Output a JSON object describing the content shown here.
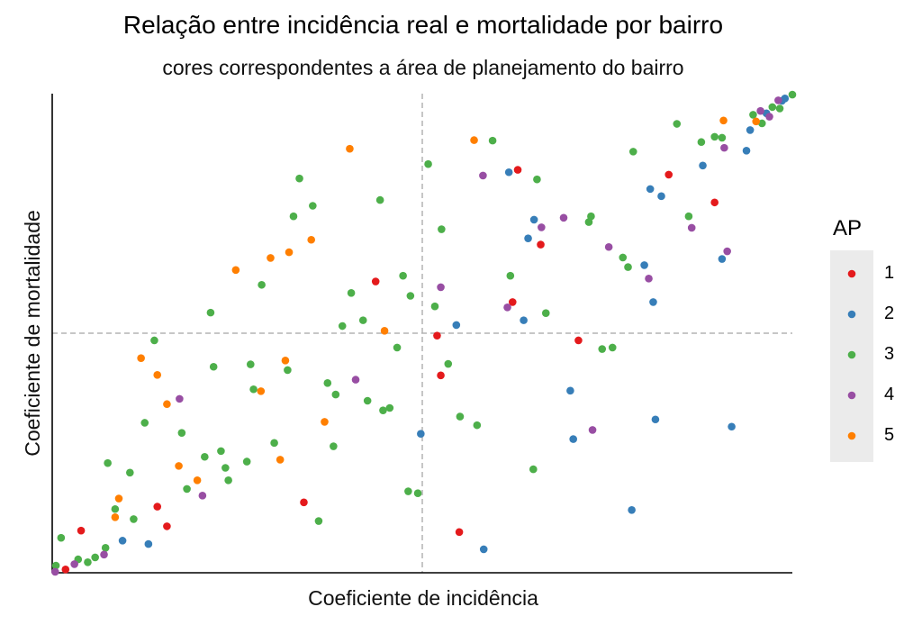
{
  "chart_data": {
    "type": "scatter",
    "title": "Relação entre incidência real e mortalidade por bairro",
    "subtitle": "cores correspondentes a área de planejamento do bairro",
    "xlabel": "Coeficiente de incidência",
    "ylabel": "Coeficiente de mortalidade",
    "xlim": [
      0,
      1
    ],
    "ylim": [
      0,
      1
    ],
    "reference_lines": {
      "x": 0.5,
      "y": 0.5
    },
    "grid": false,
    "legend": {
      "title": "AP",
      "placement": "right"
    },
    "colors": {
      "1": "#e41a1c",
      "2": "#377eb8",
      "3": "#4daf4a",
      "4": "#984ea3",
      "5": "#ff7f00"
    },
    "series": [
      {
        "name": "1",
        "points": [
          [
            0.018,
            0.007
          ],
          [
            0.039,
            0.088
          ],
          [
            0.142,
            0.138
          ],
          [
            0.155,
            0.097
          ],
          [
            0.34,
            0.147
          ],
          [
            0.437,
            0.608
          ],
          [
            0.52,
            0.495
          ],
          [
            0.525,
            0.412
          ],
          [
            0.55,
            0.085
          ],
          [
            0.622,
            0.565
          ],
          [
            0.629,
            0.841
          ],
          [
            0.66,
            0.685
          ],
          [
            0.711,
            0.485
          ],
          [
            0.833,
            0.831
          ],
          [
            0.895,
            0.773
          ]
        ]
      },
      {
        "name": "2",
        "points": [
          [
            0.095,
            0.067
          ],
          [
            0.13,
            0.06
          ],
          [
            0.498,
            0.29
          ],
          [
            0.546,
            0.517
          ],
          [
            0.583,
            0.049
          ],
          [
            0.617,
            0.836
          ],
          [
            0.637,
            0.527
          ],
          [
            0.643,
            0.698
          ],
          [
            0.651,
            0.737
          ],
          [
            0.7,
            0.38
          ],
          [
            0.704,
            0.279
          ],
          [
            0.783,
            0.131
          ],
          [
            0.8,
            0.642
          ],
          [
            0.808,
            0.801
          ],
          [
            0.823,
            0.786
          ],
          [
            0.812,
            0.565
          ],
          [
            0.815,
            0.32
          ],
          [
            0.879,
            0.85
          ],
          [
            0.905,
            0.655
          ],
          [
            0.918,
            0.305
          ],
          [
            0.938,
            0.881
          ],
          [
            0.943,
            0.924
          ],
          [
            0.965,
            0.959
          ],
          [
            0.986,
            0.985
          ],
          [
            0.99,
            0.99
          ]
        ]
      },
      {
        "name": "3",
        "points": [
          [
            0.005,
            0.015
          ],
          [
            0.012,
            0.073
          ],
          [
            0.035,
            0.028
          ],
          [
            0.048,
            0.022
          ],
          [
            0.058,
            0.032
          ],
          [
            0.072,
            0.052
          ],
          [
            0.085,
            0.133
          ],
          [
            0.11,
            0.112
          ],
          [
            0.075,
            0.229
          ],
          [
            0.105,
            0.209
          ],
          [
            0.125,
            0.313
          ],
          [
            0.138,
            0.485
          ],
          [
            0.175,
            0.292
          ],
          [
            0.182,
            0.175
          ],
          [
            0.206,
            0.242
          ],
          [
            0.214,
            0.543
          ],
          [
            0.218,
            0.43
          ],
          [
            0.228,
            0.254
          ],
          [
            0.234,
            0.219
          ],
          [
            0.238,
            0.193
          ],
          [
            0.263,
            0.232
          ],
          [
            0.268,
            0.435
          ],
          [
            0.272,
            0.383
          ],
          [
            0.283,
            0.601
          ],
          [
            0.3,
            0.271
          ],
          [
            0.318,
            0.423
          ],
          [
            0.326,
            0.744
          ],
          [
            0.334,
            0.823
          ],
          [
            0.352,
            0.766
          ],
          [
            0.36,
            0.108
          ],
          [
            0.372,
            0.396
          ],
          [
            0.38,
            0.264
          ],
          [
            0.383,
            0.372
          ],
          [
            0.392,
            0.515
          ],
          [
            0.404,
            0.584
          ],
          [
            0.42,
            0.527
          ],
          [
            0.426,
            0.359
          ],
          [
            0.443,
            0.778
          ],
          [
            0.447,
            0.339
          ],
          [
            0.456,
            0.344
          ],
          [
            0.466,
            0.47
          ],
          [
            0.474,
            0.62
          ],
          [
            0.481,
            0.17
          ],
          [
            0.484,
            0.578
          ],
          [
            0.494,
            0.166
          ],
          [
            0.508,
            0.853
          ],
          [
            0.517,
            0.556
          ],
          [
            0.526,
            0.717
          ],
          [
            0.535,
            0.436
          ],
          [
            0.551,
            0.326
          ],
          [
            0.574,
            0.308
          ],
          [
            0.595,
            0.902
          ],
          [
            0.619,
            0.62
          ],
          [
            0.65,
            0.216
          ],
          [
            0.655,
            0.821
          ],
          [
            0.667,
            0.542
          ],
          [
            0.725,
            0.732
          ],
          [
            0.728,
            0.744
          ],
          [
            0.743,
            0.467
          ],
          [
            0.757,
            0.47
          ],
          [
            0.771,
            0.658
          ],
          [
            0.778,
            0.638
          ],
          [
            0.785,
            0.879
          ],
          [
            0.844,
            0.937
          ],
          [
            0.86,
            0.744
          ],
          [
            0.877,
            0.899
          ],
          [
            0.895,
            0.91
          ],
          [
            0.905,
            0.908
          ],
          [
            0.947,
            0.956
          ],
          [
            0.959,
            0.938
          ],
          [
            0.973,
            0.972
          ],
          [
            0.983,
            0.969
          ],
          [
            1.0,
            0.998
          ]
        ]
      },
      {
        "name": "4",
        "points": [
          [
            0.004,
            0.002
          ],
          [
            0.03,
            0.018
          ],
          [
            0.07,
            0.038
          ],
          [
            0.172,
            0.363
          ],
          [
            0.203,
            0.161
          ],
          [
            0.41,
            0.403
          ],
          [
            0.525,
            0.596
          ],
          [
            0.582,
            0.829
          ],
          [
            0.615,
            0.554
          ],
          [
            0.661,
            0.721
          ],
          [
            0.691,
            0.741
          ],
          [
            0.73,
            0.298
          ],
          [
            0.752,
            0.68
          ],
          [
            0.806,
            0.614
          ],
          [
            0.864,
            0.72
          ],
          [
            0.908,
            0.887
          ],
          [
            0.912,
            0.671
          ],
          [
            0.957,
            0.964
          ],
          [
            0.969,
            0.952
          ],
          [
            0.981,
            0.986
          ]
        ]
      },
      {
        "name": "5",
        "points": [
          [
            0.085,
            0.116
          ],
          [
            0.09,
            0.155
          ],
          [
            0.12,
            0.448
          ],
          [
            0.142,
            0.413
          ],
          [
            0.155,
            0.352
          ],
          [
            0.171,
            0.223
          ],
          [
            0.196,
            0.193
          ],
          [
            0.248,
            0.632
          ],
          [
            0.282,
            0.379
          ],
          [
            0.295,
            0.657
          ],
          [
            0.308,
            0.236
          ],
          [
            0.315,
            0.443
          ],
          [
            0.32,
            0.669
          ],
          [
            0.35,
            0.695
          ],
          [
            0.368,
            0.315
          ],
          [
            0.402,
            0.885
          ],
          [
            0.449,
            0.505
          ],
          [
            0.57,
            0.903
          ],
          [
            0.907,
            0.944
          ],
          [
            0.951,
            0.942
          ]
        ]
      }
    ]
  }
}
